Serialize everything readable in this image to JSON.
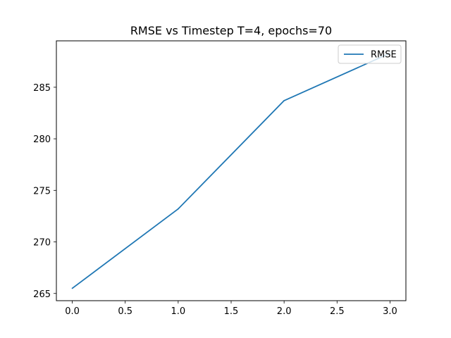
{
  "chart_data": {
    "type": "line",
    "title": "RMSE vs Timestep T=4, epochs=70",
    "xlabel": "",
    "ylabel": "",
    "x": [
      0,
      1,
      2,
      3
    ],
    "series": [
      {
        "name": "RMSE",
        "values": [
          265.5,
          273.2,
          283.7,
          288.3
        ],
        "color": "#1f77b4"
      }
    ],
    "xlim": [
      -0.15,
      3.15
    ],
    "ylim": [
      264.3,
      289.5
    ],
    "xticks": [
      0.0,
      0.5,
      1.0,
      1.5,
      2.0,
      2.5,
      3.0
    ],
    "xtick_labels": [
      "0.0",
      "0.5",
      "1.0",
      "1.5",
      "2.0",
      "2.5",
      "3.0"
    ],
    "yticks": [
      265,
      270,
      275,
      280,
      285
    ],
    "ytick_labels": [
      "265",
      "270",
      "275",
      "280",
      "285"
    ],
    "grid": false,
    "legend_position": "top-right"
  }
}
